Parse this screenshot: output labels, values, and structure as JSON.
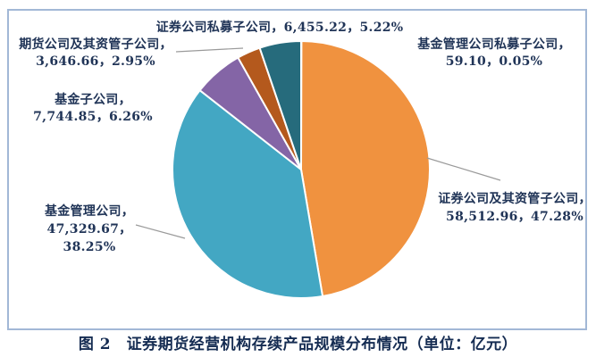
{
  "figure": {
    "caption": "图 2　证券期货经营机构存续产品规模分布情况（单位：亿元）"
  },
  "chart_data": {
    "type": "pie",
    "title": "证券期货经营机构存续产品规模分布情况",
    "unit": "亿元",
    "start_angle_deg": 0,
    "direction": "clockwise",
    "legend": "none",
    "slices": [
      {
        "name": "基金管理公司私募子公司",
        "value": 59.1,
        "pct": 0.05,
        "color": "#4f81bd"
      },
      {
        "name": "证券公司及其资管子公司",
        "value": 58512.96,
        "pct": 47.28,
        "color": "#f0923f"
      },
      {
        "name": "基金管理公司",
        "value": 47329.67,
        "pct": 38.25,
        "color": "#43a7c3"
      },
      {
        "name": "基金子公司",
        "value": 7744.85,
        "pct": 6.26,
        "color": "#8465a6"
      },
      {
        "name": "期货公司及其资管子公司",
        "value": 3646.66,
        "pct": 2.95,
        "color": "#b4591d"
      },
      {
        "name": "证券公司私募子公司",
        "value": 6455.22,
        "pct": 5.22,
        "color": "#266b7c"
      }
    ]
  },
  "callouts": [
    {
      "id": "securities-private",
      "lines": [
        "证券公司私募子公司，6,455.22，5.22%"
      ]
    },
    {
      "id": "futures",
      "lines": [
        "期货公司及其资管子公司，",
        "3,646.66，2.95%"
      ]
    },
    {
      "id": "fund-subsidiary",
      "lines": [
        "基金子公司，",
        "7,744.85，6.26%"
      ]
    },
    {
      "id": "fund-mgmt",
      "lines": [
        "基金管理公司，",
        "47,329.67，",
        "38.25%"
      ]
    },
    {
      "id": "fund-mgmt-private",
      "lines": [
        "基金管理公司私募子公司，",
        "59.10，0.05%"
      ]
    },
    {
      "id": "securities-asset-mgmt",
      "lines": [
        "证券公司及其资管子公司，",
        "58,512.96，47.28%"
      ]
    }
  ]
}
